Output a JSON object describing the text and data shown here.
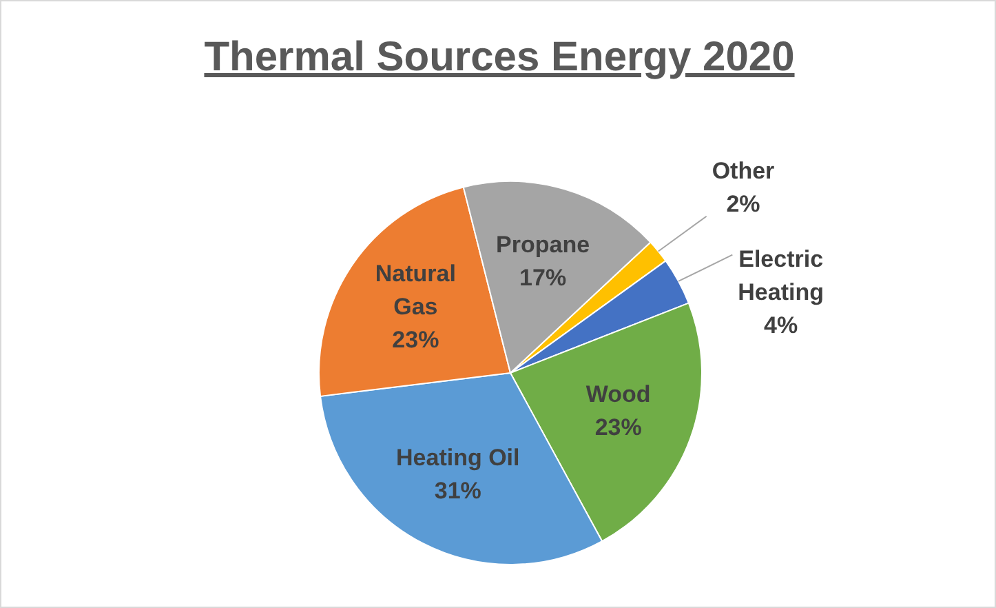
{
  "chart_data": {
    "type": "pie",
    "title": "Thermal Sources Energy 2020",
    "categories": [
      "Other",
      "Electric Heating",
      "Wood",
      "Heating Oil",
      "Natural Gas",
      "Propane"
    ],
    "values": [
      2,
      4,
      23,
      31,
      23,
      17
    ],
    "colors": [
      "#ffc000",
      "#4472c4",
      "#70ad47",
      "#5b9bd5",
      "#ed7d31",
      "#a5a5a5"
    ],
    "value_labels": [
      "2%",
      "4%",
      "23%",
      "31%",
      "23%",
      "17%"
    ],
    "legend": false
  }
}
